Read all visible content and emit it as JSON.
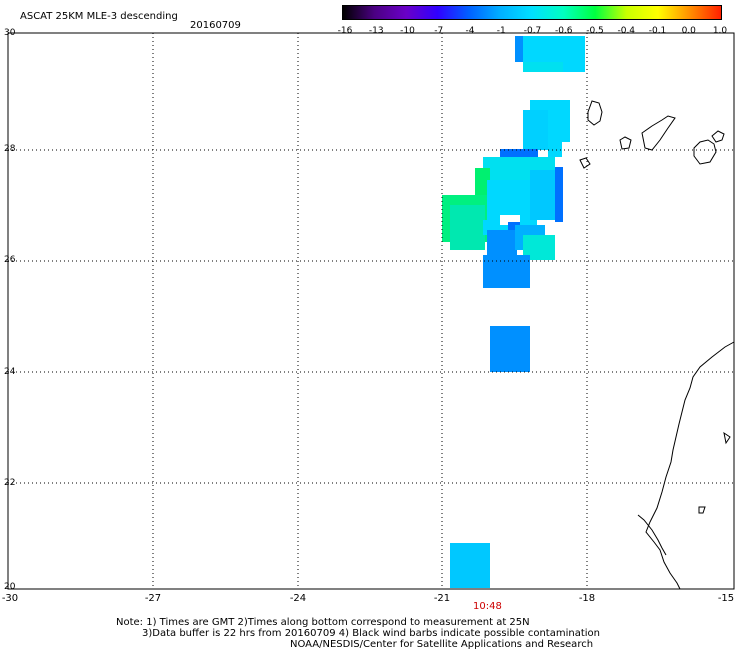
{
  "header": {
    "title": "ASCAT 25KM MLE-3 descending",
    "date": "20160709"
  },
  "colorbar": {
    "labels": [
      "-16",
      "-13",
      "-10",
      "-7",
      "-4",
      "-1",
      "-0.7",
      "-0.6",
      "-0.5",
      "-0.4",
      "-0.1",
      "0.0",
      "1.0"
    ],
    "colors": [
      "#000000",
      "#4b0082",
      "#6a00c8",
      "#3000ff",
      "#0060ff",
      "#00b0ff",
      "#00e0ff",
      "#00ffc0",
      "#00ff40",
      "#c8ff00",
      "#ffff00",
      "#ff9000",
      "#ff2000"
    ]
  },
  "axes": {
    "lat_labels": [
      "30",
      "28",
      "26",
      "24",
      "22",
      "20"
    ],
    "lon_labels": [
      "-30",
      "-27",
      "-24",
      "-21",
      "-18",
      "-15"
    ]
  },
  "pass_time": "10:48",
  "notes": {
    "line1": "Note: 1) Times are GMT 2)Times along bottom correspond to measurement at 25N",
    "line2": "3)Data buffer is 22 hrs from 20160709 4) Black wind barbs indicate possible contamination",
    "line3": "NOAA/NESDIS/Center for Satellite Applications and Research"
  },
  "map_colors": {
    "coastline": "#000000",
    "grid": "#000000"
  }
}
